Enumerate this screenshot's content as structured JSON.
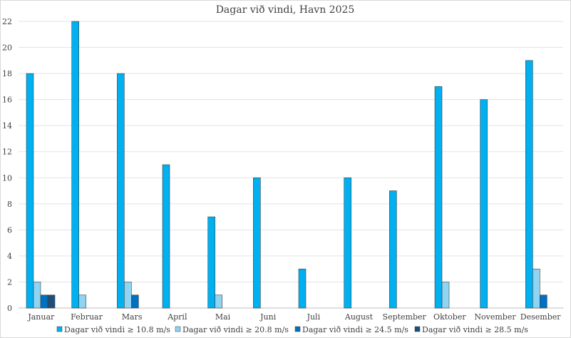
{
  "chart_data": {
    "type": "bar",
    "title": "Dagar við vindi, Havn 2025",
    "xlabel": "",
    "ylabel": "",
    "ylim": [
      0,
      22
    ],
    "yticks": [
      0,
      2,
      4,
      6,
      8,
      10,
      12,
      14,
      16,
      18,
      20,
      22
    ],
    "grid": true,
    "legend_position": "bottom",
    "categories": [
      "Januar",
      "Februar",
      "Mars",
      "April",
      "Mai",
      "Juni",
      "Juli",
      "August",
      "September",
      "Oktober",
      "November",
      "Desember"
    ],
    "series": [
      {
        "name": "Dagar við vindi ≥ 10.8 m/s",
        "color": "#00b0f0",
        "values": [
          18,
          22,
          18,
          11,
          7,
          10,
          3,
          10,
          9,
          17,
          16,
          19
        ]
      },
      {
        "name": "Dagar við vindi ≥ 20.8 m/s",
        "color": "#8fd4f2",
        "values": [
          2,
          1,
          2,
          0,
          1,
          0,
          0,
          0,
          0,
          2,
          0,
          3
        ]
      },
      {
        "name": "Dagar við vindi ≥ 24.5 m/s",
        "color": "#0070c0",
        "values": [
          1,
          0,
          1,
          0,
          0,
          0,
          0,
          0,
          0,
          0,
          0,
          1
        ]
      },
      {
        "name": "Dagar við vindi ≥ 28.5 m/s",
        "color": "#1f4e79",
        "values": [
          1,
          0,
          0,
          0,
          0,
          0,
          0,
          0,
          0,
          0,
          0,
          0
        ]
      }
    ]
  }
}
